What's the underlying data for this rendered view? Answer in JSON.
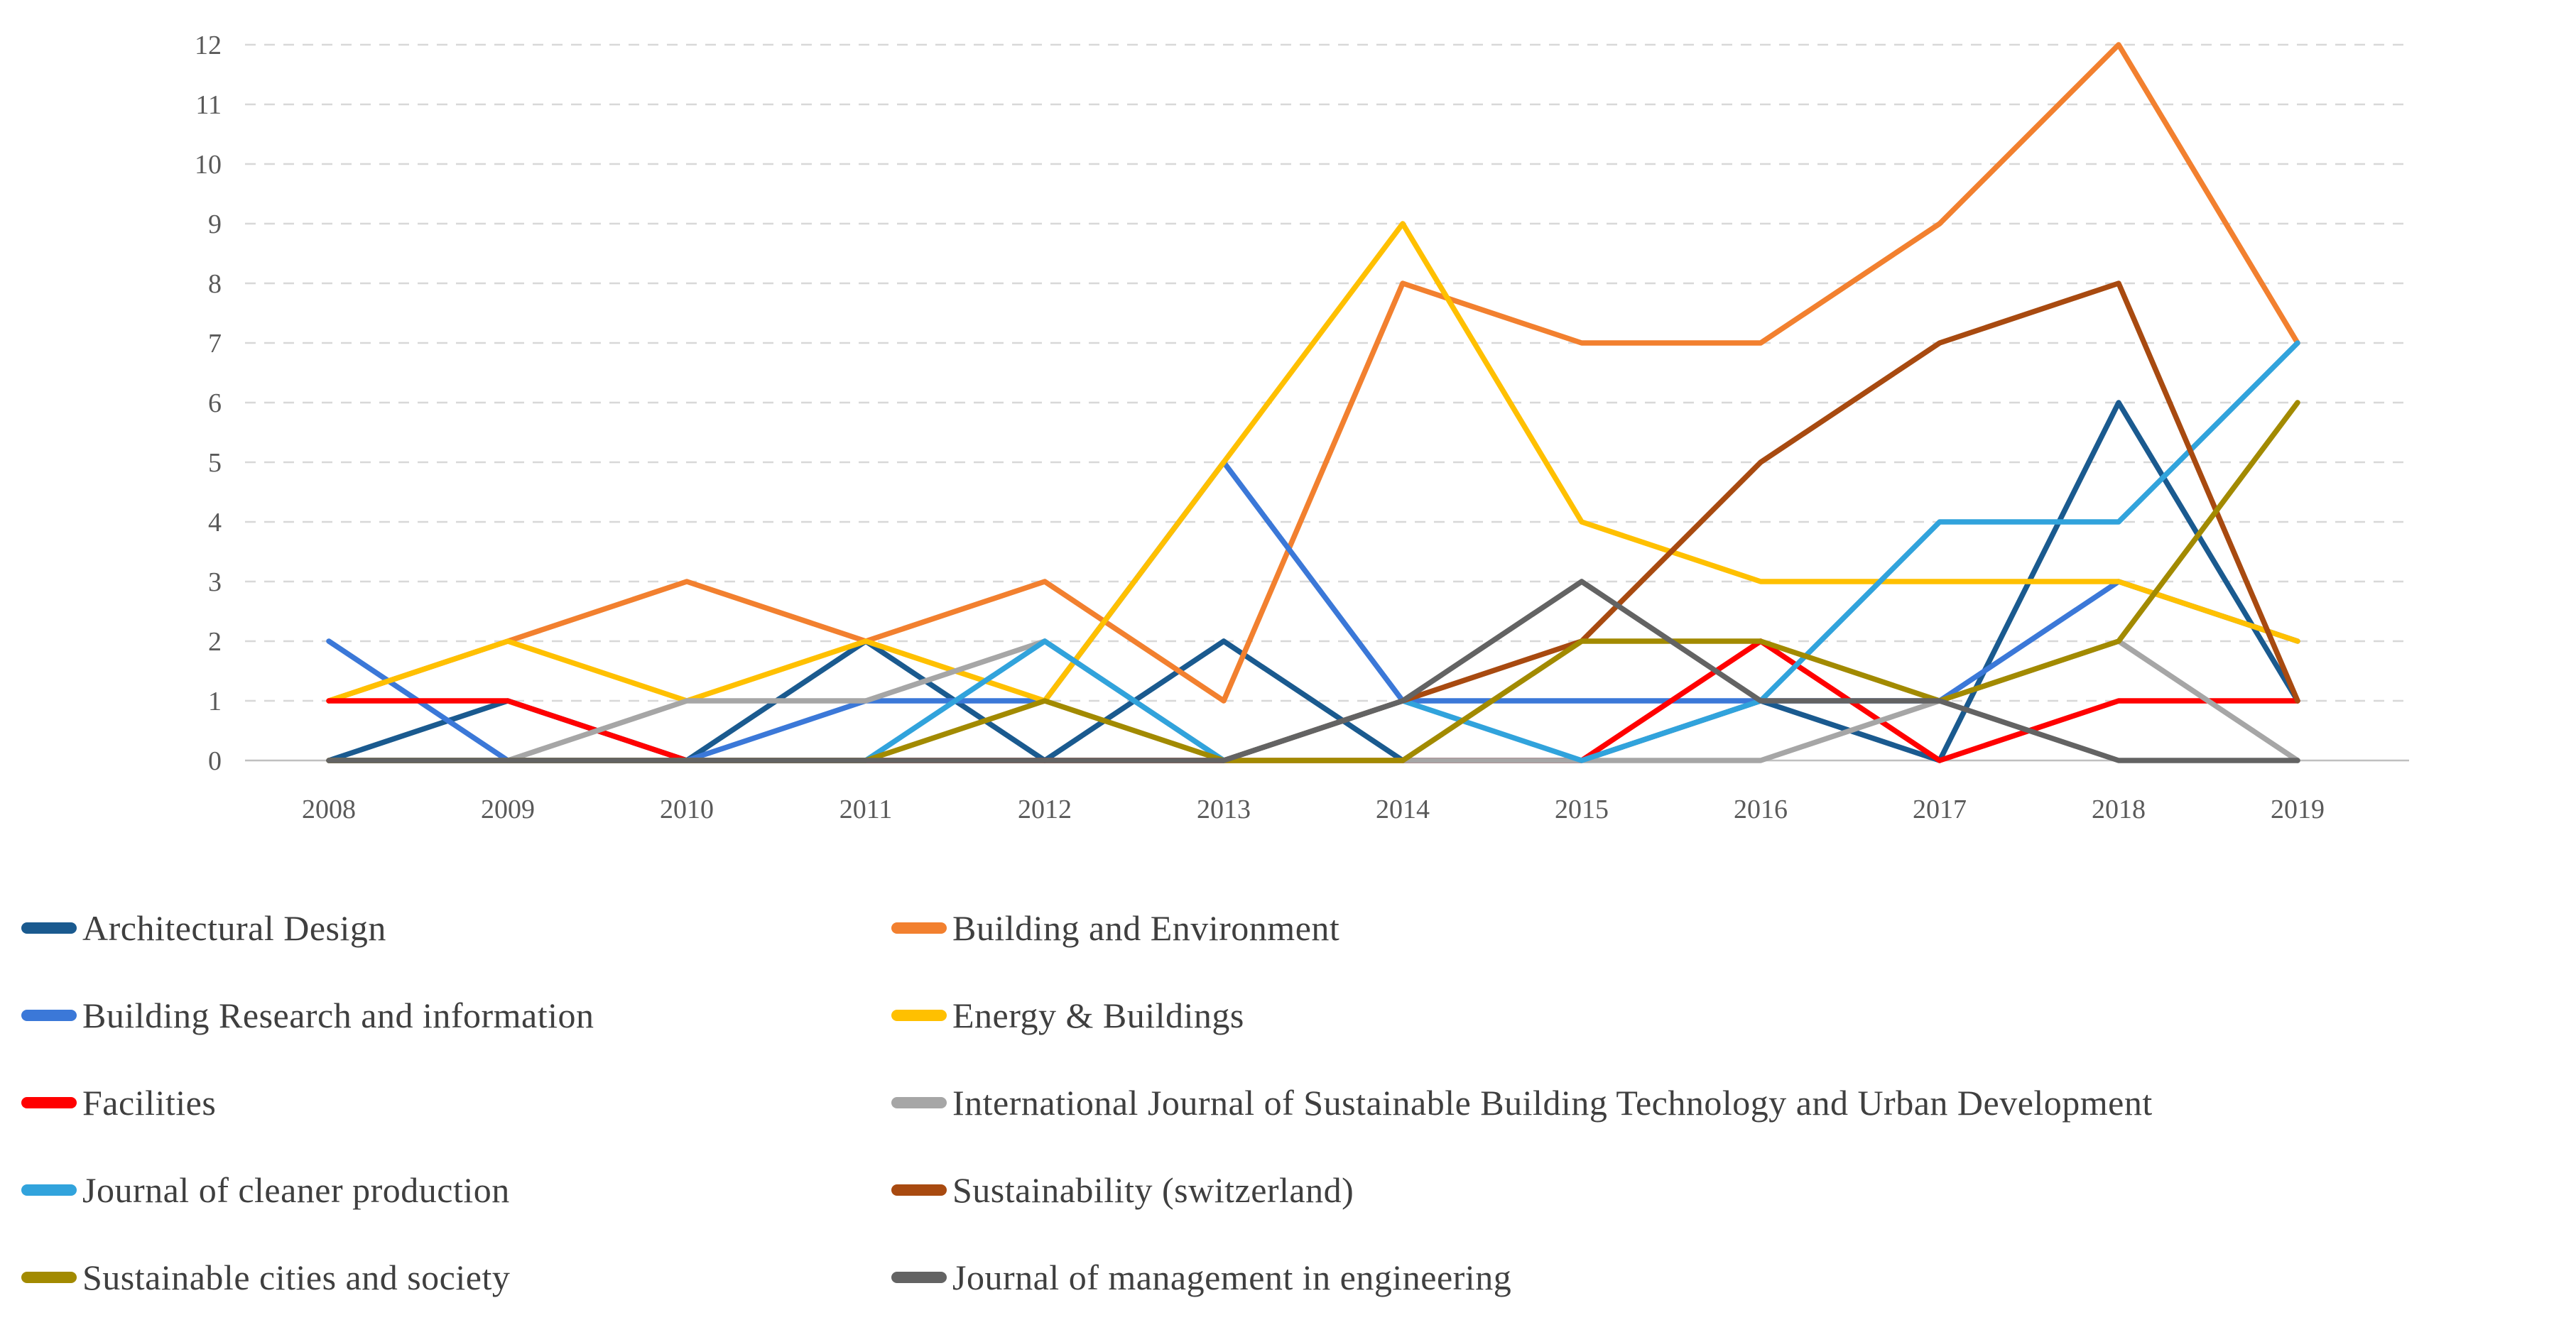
{
  "figure": {
    "background": "#ffffff",
    "axis_text_color": "#595959",
    "gridline_color": "#d8d8d8",
    "axis_line_color": "#c0c0c0",
    "legend_text_color": "#3f3f3f"
  },
  "chart_data": {
    "type": "line",
    "title": "",
    "xlabel": "",
    "ylabel": "",
    "x_labels": [
      "2008",
      "2009",
      "2010",
      "2011",
      "2012",
      "2013",
      "2014",
      "2015",
      "2016",
      "2017",
      "2018",
      "2019"
    ],
    "y_tick_labels": [
      "0",
      "1",
      "2",
      "3",
      "4",
      "5",
      "6",
      "7",
      "8",
      "9",
      "10",
      "11",
      "12"
    ],
    "ylim": [
      0,
      12
    ],
    "grid": "horizontal-dashed",
    "legend_position": "bottom-two-columns",
    "series": [
      {
        "name": "Architectural Design",
        "color": "#1A5A8F",
        "values": [
          0,
          1,
          0,
          2,
          0,
          2,
          0,
          0,
          1,
          0,
          6,
          1
        ]
      },
      {
        "name": "Building and Environment",
        "color": "#F2802F",
        "values": [
          1,
          2,
          3,
          2,
          3,
          1,
          8,
          7,
          7,
          9,
          12,
          7
        ]
      },
      {
        "name": "Building Research and information",
        "color": "#3B78D8",
        "values": [
          2,
          0,
          0,
          1,
          1,
          5,
          1,
          1,
          1,
          1,
          3,
          2
        ]
      },
      {
        "name": "Energy & Buildings",
        "color": "#FFC000",
        "values": [
          1,
          2,
          1,
          2,
          1,
          5,
          9,
          4,
          3,
          3,
          3,
          2
        ]
      },
      {
        "name": "Facilities",
        "color": "#FF0000",
        "values": [
          1,
          1,
          0,
          0,
          0,
          0,
          0,
          0,
          2,
          0,
          1,
          1
        ]
      },
      {
        "name": "International Journal of Sustainable Building Technology and Urban Development",
        "color": "#A6A6A6",
        "values": [
          0,
          0,
          1,
          1,
          2,
          0,
          0,
          0,
          0,
          1,
          2,
          0
        ]
      },
      {
        "name": "Journal of cleaner production",
        "color": "#31A3DC",
        "values": [
          0,
          0,
          0,
          0,
          2,
          0,
          1,
          0,
          1,
          4,
          4,
          7
        ]
      },
      {
        "name": "Sustainability (switzerland)",
        "color": "#A84A10",
        "values": [
          0,
          0,
          0,
          0,
          0,
          0,
          1,
          2,
          5,
          7,
          8,
          1
        ]
      },
      {
        "name": "Sustainable cities and society",
        "color": "#A28A00",
        "values": [
          0,
          0,
          0,
          0,
          1,
          0,
          0,
          2,
          2,
          1,
          2,
          6
        ]
      },
      {
        "name": "Journal of management in engineering",
        "color": "#636363",
        "values": [
          0,
          0,
          0,
          0,
          0,
          0,
          1,
          3,
          1,
          1,
          0,
          0
        ]
      }
    ]
  }
}
